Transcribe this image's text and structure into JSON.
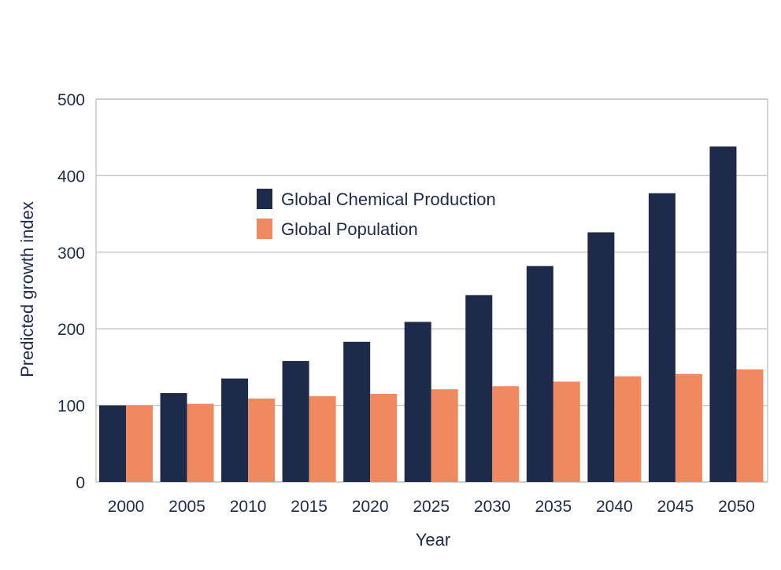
{
  "chart_data": {
    "type": "bar",
    "title": "",
    "xlabel": "Year",
    "ylabel": "Predicted growth index",
    "categories": [
      "2000",
      "2005",
      "2010",
      "2015",
      "2020",
      "2025",
      "2030",
      "2035",
      "2040",
      "2045",
      "2050"
    ],
    "series": [
      {
        "name": "Global Chemical Production",
        "color": "#1e2a4a",
        "values": [
          100,
          116,
          135,
          158,
          183,
          209,
          244,
          282,
          326,
          377,
          438
        ]
      },
      {
        "name": "Global Population",
        "color": "#f0895f",
        "values": [
          100,
          102,
          109,
          112,
          115,
          121,
          125,
          131,
          138,
          141,
          147
        ]
      }
    ],
    "ylim": [
      0,
      500
    ],
    "yticks": [
      0,
      100,
      200,
      300,
      400,
      500
    ],
    "grid": true,
    "legend_position": "upper-center"
  }
}
